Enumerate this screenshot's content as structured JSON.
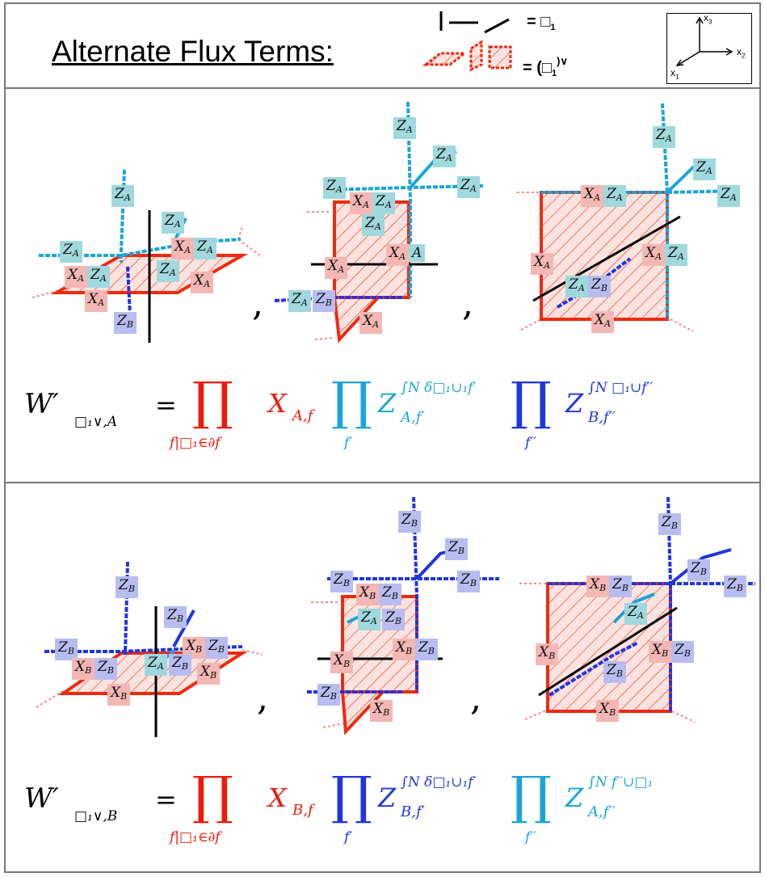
{
  "header": {
    "title": "Alternate Flux Terms:",
    "legend_row1_eq": "= □",
    "legend_row1_sub": "1",
    "legend_row2_eq": "= (□",
    "legend_row2_sub": "1",
    "legend_row2_sup": ")∨",
    "axes": {
      "x1": "x",
      "x1_sub": "1",
      "x2": "x",
      "x2_sub": "2",
      "x3": "x",
      "x3_sub": "3"
    }
  },
  "colors": {
    "red": "#ee2a0e",
    "cyan": "#1aa5d8",
    "blue": "#1f35e0",
    "hatch_fill": "#fde3df",
    "pink_dotted": "#f08c8c"
  },
  "panelA": {
    "labels": {
      "za": "Z",
      "za_sub": "A",
      "xa": "X",
      "xa_sub": "A",
      "zb": "Z",
      "zb_sub": "B",
      "a_only": "A"
    },
    "comma": ",",
    "formula": {
      "lhs": "W′",
      "lhs_sub": "□₁∨,A",
      "eq": "=",
      "prod": "∏",
      "prod1_sub": "f|□₁∈∂f",
      "x_term": "X",
      "x_sub": "A,f",
      "prod2_sub": "f′",
      "z1": "Z",
      "z1_sub": "A,f′",
      "z1_sup": "∫N δ□₁∪₁f′",
      "prod3_sub": "f′′",
      "z2": "Z",
      "z2_sub": "B,f′′",
      "z2_sup": "∫N □₁∪f′′"
    }
  },
  "panelB": {
    "labels": {
      "zb": "Z",
      "zb_sub": "B",
      "xb": "X",
      "xb_sub": "B",
      "za": "Z",
      "za_sub": "A"
    },
    "comma": ",",
    "formula": {
      "lhs": "W′",
      "lhs_sub": "□₁∨,B",
      "eq": "=",
      "prod": "∏",
      "prod1_sub": "f|□₁∈∂f",
      "x_term": "X",
      "x_sub": "B,f",
      "prod2_sub": "f′",
      "z1": "Z",
      "z1_sub": "B,f′",
      "z1_sup": "∫N δ□₁∪₁f′",
      "prod3_sub": "f′′",
      "z2": "Z",
      "z2_sub": "A,f′′",
      "z2_sup": "∫N f′′∪□₁"
    }
  }
}
